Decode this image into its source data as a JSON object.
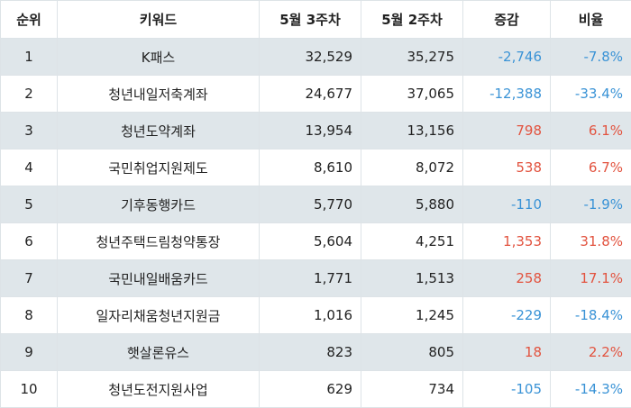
{
  "table": {
    "headers": {
      "rank": "순위",
      "keyword": "키워드",
      "week3": "5월 3주차",
      "week2": "5월 2주차",
      "diff": "증감",
      "ratio": "비율"
    },
    "rows": [
      {
        "rank": "1",
        "keyword": "K패스",
        "week3": "32,529",
        "week2": "35,275",
        "diff": "-2,746",
        "ratio": "-7.8%",
        "trend": "down"
      },
      {
        "rank": "2",
        "keyword": "청년내일저축계좌",
        "week3": "24,677",
        "week2": "37,065",
        "diff": "-12,388",
        "ratio": "-33.4%",
        "trend": "down"
      },
      {
        "rank": "3",
        "keyword": "청년도약계좌",
        "week3": "13,954",
        "week2": "13,156",
        "diff": "798",
        "ratio": "6.1%",
        "trend": "up"
      },
      {
        "rank": "4",
        "keyword": "국민취업지원제도",
        "week3": "8,610",
        "week2": "8,072",
        "diff": "538",
        "ratio": "6.7%",
        "trend": "up"
      },
      {
        "rank": "5",
        "keyword": "기후동행카드",
        "week3": "5,770",
        "week2": "5,880",
        "diff": "-110",
        "ratio": "-1.9%",
        "trend": "down"
      },
      {
        "rank": "6",
        "keyword": "청년주택드림청약통장",
        "week3": "5,604",
        "week2": "4,251",
        "diff": "1,353",
        "ratio": "31.8%",
        "trend": "up"
      },
      {
        "rank": "7",
        "keyword": "국민내일배움카드",
        "week3": "1,771",
        "week2": "1,513",
        "diff": "258",
        "ratio": "17.1%",
        "trend": "up"
      },
      {
        "rank": "8",
        "keyword": "일자리채움청년지원금",
        "week3": "1,016",
        "week2": "1,245",
        "diff": "-229",
        "ratio": "-18.4%",
        "trend": "down"
      },
      {
        "rank": "9",
        "keyword": "햇살론유스",
        "week3": "823",
        "week2": "805",
        "diff": "18",
        "ratio": "2.2%",
        "trend": "up"
      },
      {
        "rank": "10",
        "keyword": "청년도전지원사업",
        "week3": "629",
        "week2": "734",
        "diff": "-105",
        "ratio": "-14.3%",
        "trend": "down"
      }
    ]
  },
  "colors": {
    "increase": "#e2533f",
    "decrease": "#3a93d6",
    "stripe": "#dfe6ea",
    "border": "#dde3e7"
  }
}
